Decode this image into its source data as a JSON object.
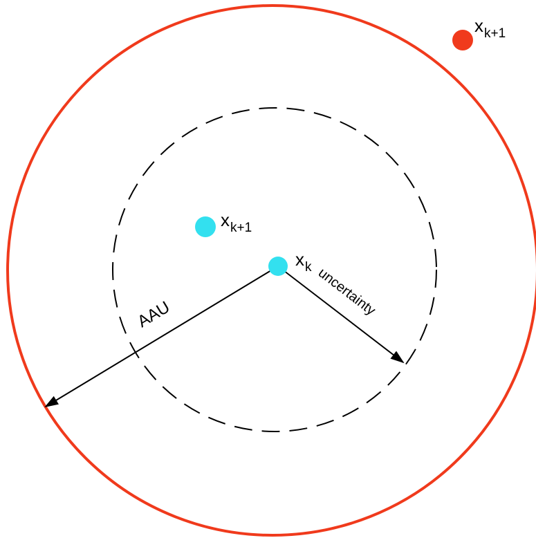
{
  "colors": {
    "outer_circle": "#f03a1c",
    "inner_circle": "#000000",
    "point_cyan": "#33e0ef",
    "point_red": "#f03a1c",
    "line": "#000000"
  },
  "labels": {
    "xk_main": "x",
    "xk_sub": "k",
    "xk1_inner_main": "x",
    "xk1_inner_sub": "k+1",
    "xk1_outer_main": "x",
    "xk1_outer_sub": "k+1",
    "aau": "AAU",
    "uncertainty": "uncertainty"
  }
}
